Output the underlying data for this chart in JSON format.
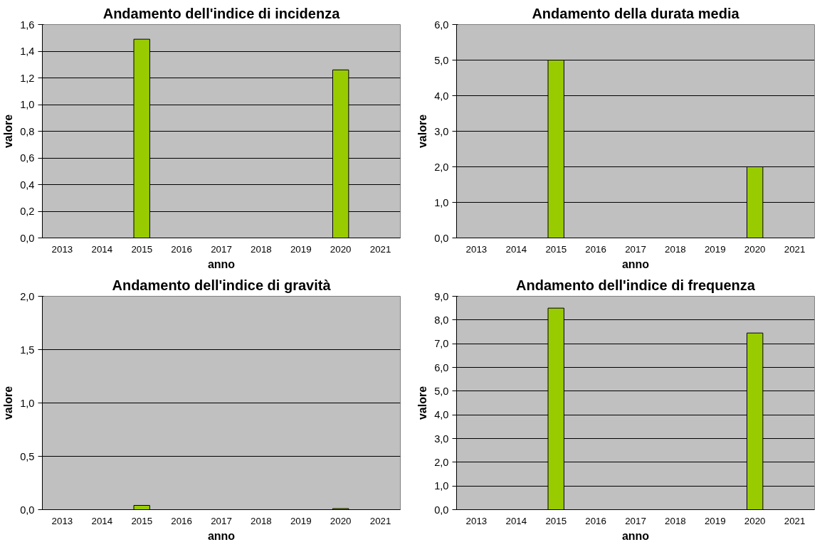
{
  "chart_data": [
    {
      "type": "bar",
      "title": "Andamento dell'indice di incidenza",
      "xlabel": "anno",
      "ylabel": "valore",
      "categories": [
        "2013",
        "2014",
        "2015",
        "2016",
        "2017",
        "2018",
        "2019",
        "2020",
        "2021"
      ],
      "values": [
        null,
        null,
        1.49,
        null,
        null,
        null,
        null,
        1.26,
        null
      ],
      "color": "#99cc00",
      "ylim": [
        0,
        1.6
      ],
      "yticks": [
        {
          "value": 0,
          "label": "0,0"
        },
        {
          "value": 0.2,
          "label": "0,2"
        },
        {
          "value": 0.4,
          "label": "0,4"
        },
        {
          "value": 0.6,
          "label": "0,6"
        },
        {
          "value": 0.8,
          "label": "0,8"
        },
        {
          "value": 1.0,
          "label": "1,0"
        },
        {
          "value": 1.2,
          "label": "1,2"
        },
        {
          "value": 1.4,
          "label": "1,4"
        },
        {
          "value": 1.6,
          "label": "1,6"
        }
      ],
      "grid": "y"
    },
    {
      "type": "bar",
      "title": "Andamento della durata media",
      "xlabel": "anno",
      "ylabel": "valore",
      "categories": [
        "2013",
        "2014",
        "2015",
        "2016",
        "2017",
        "2018",
        "2019",
        "2020",
        "2021"
      ],
      "values": [
        null,
        null,
        5.0,
        null,
        null,
        null,
        null,
        2.0,
        null
      ],
      "color": "#99cc00",
      "ylim": [
        0,
        6
      ],
      "yticks": [
        {
          "value": 0,
          "label": "0,0"
        },
        {
          "value": 1,
          "label": "1,0"
        },
        {
          "value": 2,
          "label": "2,0"
        },
        {
          "value": 3,
          "label": "3,0"
        },
        {
          "value": 4,
          "label": "4,0"
        },
        {
          "value": 5,
          "label": "5,0"
        },
        {
          "value": 6,
          "label": "6,0"
        }
      ],
      "grid": "y"
    },
    {
      "type": "bar",
      "title": "Andamento dell'indice di gravità",
      "xlabel": "anno",
      "ylabel": "valore",
      "categories": [
        "2013",
        "2014",
        "2015",
        "2016",
        "2017",
        "2018",
        "2019",
        "2020",
        "2021"
      ],
      "values": [
        null,
        null,
        0.04,
        null,
        null,
        null,
        null,
        0.01,
        null
      ],
      "color": "#99cc00",
      "ylim": [
        0,
        2
      ],
      "yticks": [
        {
          "value": 0,
          "label": "0,0"
        },
        {
          "value": 0.5,
          "label": "0,5"
        },
        {
          "value": 1.0,
          "label": "1,0"
        },
        {
          "value": 1.5,
          "label": "1,5"
        },
        {
          "value": 2.0,
          "label": "2,0"
        }
      ],
      "grid": "y"
    },
    {
      "type": "bar",
      "title": "Andamento dell'indice di frequenza",
      "xlabel": "anno",
      "ylabel": "valore",
      "categories": [
        "2013",
        "2014",
        "2015",
        "2016",
        "2017",
        "2018",
        "2019",
        "2020",
        "2021"
      ],
      "values": [
        null,
        null,
        8.5,
        null,
        null,
        null,
        null,
        7.45,
        null
      ],
      "color": "#99cc00",
      "ylim": [
        0,
        9
      ],
      "yticks": [
        {
          "value": 0,
          "label": "0,0"
        },
        {
          "value": 1,
          "label": "1,0"
        },
        {
          "value": 2,
          "label": "2,0"
        },
        {
          "value": 3,
          "label": "3,0"
        },
        {
          "value": 4,
          "label": "4,0"
        },
        {
          "value": 5,
          "label": "5,0"
        },
        {
          "value": 6,
          "label": "6,0"
        },
        {
          "value": 7,
          "label": "7,0"
        },
        {
          "value": 8,
          "label": "8,0"
        },
        {
          "value": 9,
          "label": "9,0"
        }
      ],
      "grid": "y"
    }
  ]
}
